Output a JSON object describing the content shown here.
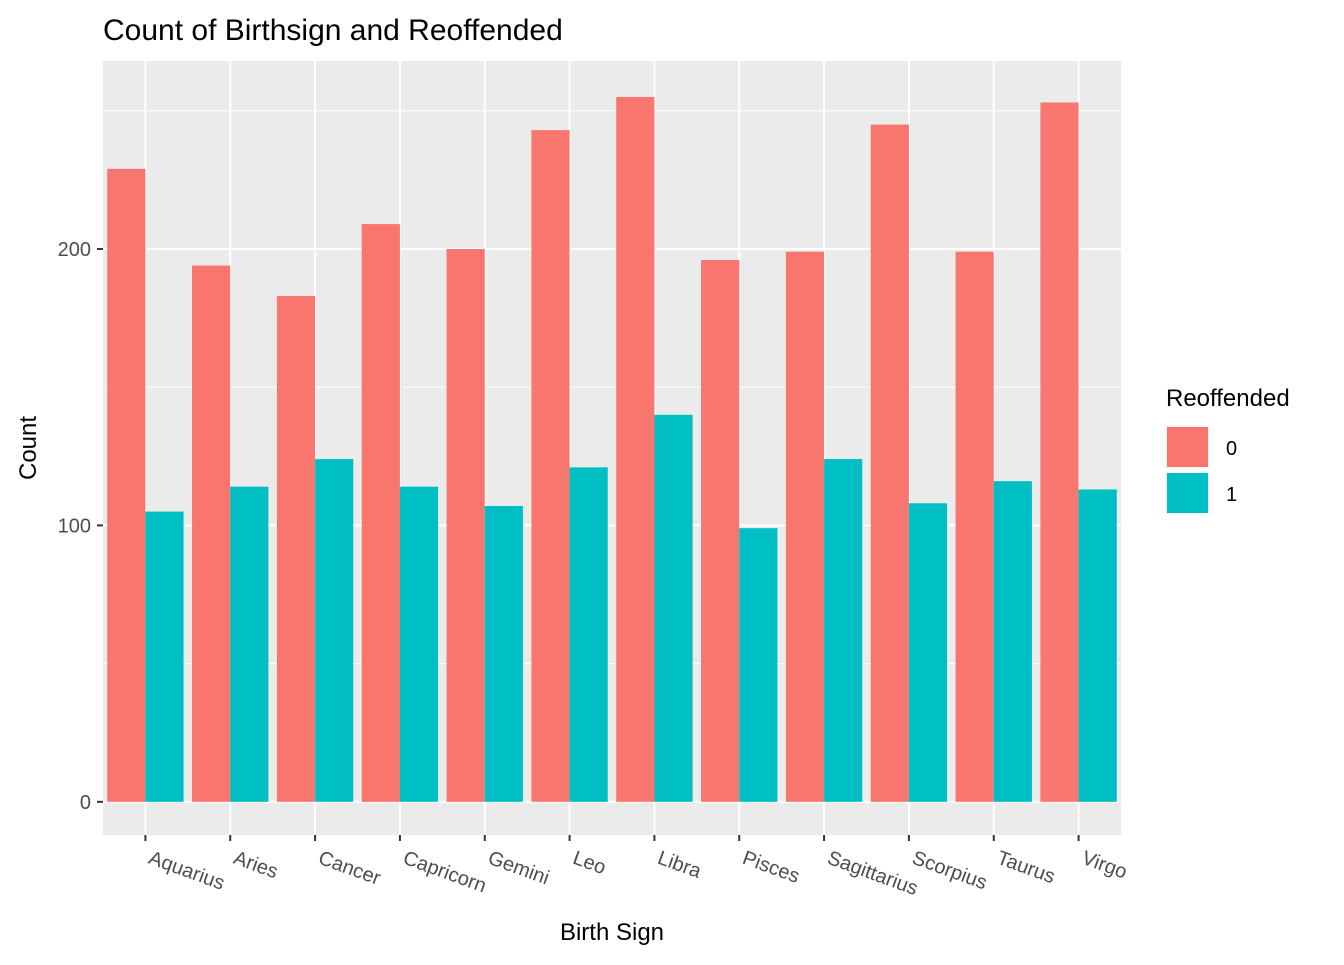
{
  "chart_data": {
    "type": "bar",
    "title": "Count of Birthsign and Reoffended",
    "xlabel": "Birth Sign",
    "ylabel": "Count",
    "categories": [
      "Aquarius",
      "Aries",
      "Cancer",
      "Capricorn",
      "Gemini",
      "Leo",
      "Libra",
      "Pisces",
      "Sagittarius",
      "Scorpius",
      "Taurus",
      "Virgo"
    ],
    "series": [
      {
        "name": "0",
        "color": "#F8766D",
        "values": [
          229,
          194,
          183,
          209,
          200,
          243,
          255,
          196,
          199,
          245,
          199,
          253
        ]
      },
      {
        "name": "1",
        "color": "#00BFC4",
        "values": [
          105,
          114,
          124,
          114,
          107,
          121,
          140,
          99,
          124,
          108,
          116,
          113
        ]
      }
    ],
    "ylim": [
      -12,
      268
    ],
    "yticks": [
      0,
      100,
      200
    ],
    "y_minor_ticks": [
      50,
      150,
      250
    ],
    "legend": {
      "title": "Reoffended",
      "position": "right"
    },
    "grid": true,
    "panel_background": "#EBEBEB",
    "x_tick_label_rotation": "slanted"
  }
}
